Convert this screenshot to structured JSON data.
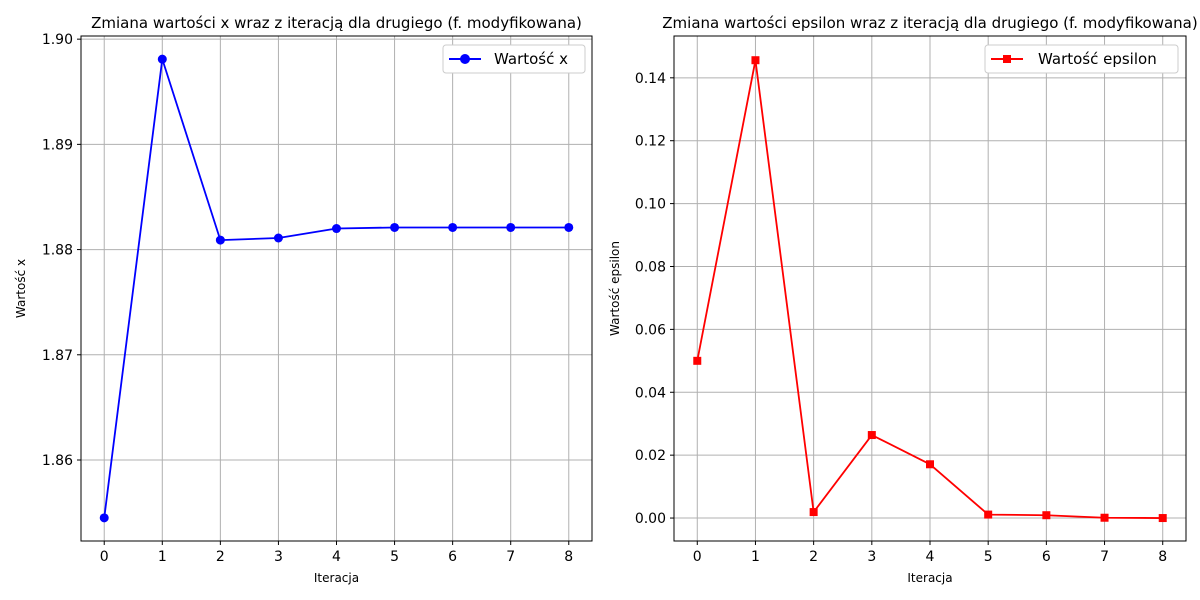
{
  "chart_data": [
    {
      "type": "line",
      "title": "Zmiana wartości x wraz z iteracją dla drugiego (f. modyfikowana)",
      "xlabel": "Iteracja",
      "ylabel": "Wartość x",
      "x": [
        0,
        1,
        2,
        3,
        4,
        5,
        6,
        7,
        8
      ],
      "xticks": [
        "0",
        "1",
        "2",
        "3",
        "4",
        "5",
        "6",
        "7",
        "8"
      ],
      "xlim": [
        -0.4,
        8.4
      ],
      "ylim": [
        1.8523,
        1.9003
      ],
      "yticks": [
        1.86,
        1.87,
        1.88,
        1.89,
        1.9
      ],
      "ytick_labels": [
        "1.86",
        "1.87",
        "1.88",
        "1.89",
        "1.90"
      ],
      "grid": true,
      "legend_position": "top-right",
      "series": [
        {
          "name": "Wartość x",
          "color": "#0000ff",
          "marker": "circle",
          "values": [
            1.8545,
            1.8981,
            1.8809,
            1.8811,
            1.882,
            1.8821,
            1.8821,
            1.8821,
            1.8821
          ]
        }
      ]
    },
    {
      "type": "line",
      "title": "Zmiana wartości epsilon wraz z iteracją dla drugiego (f. modyfikowana)",
      "xlabel": "Iteracja",
      "ylabel": "Wartość epsilon",
      "x": [
        0,
        1,
        2,
        3,
        4,
        5,
        6,
        7,
        8
      ],
      "xticks": [
        "0",
        "1",
        "2",
        "3",
        "4",
        "5",
        "6",
        "7",
        "8"
      ],
      "xlim": [
        -0.4,
        8.4
      ],
      "ylim": [
        -0.0073,
        0.1533
      ],
      "yticks": [
        0.0,
        0.02,
        0.04,
        0.06,
        0.08,
        0.1,
        0.12,
        0.14
      ],
      "ytick_labels": [
        "0.00",
        "0.02",
        "0.04",
        "0.06",
        "0.08",
        "0.10",
        "0.12",
        "0.14"
      ],
      "grid": true,
      "legend_position": "top-right",
      "series": [
        {
          "name": "Wartość epsilon",
          "color": "#ff0000",
          "marker": "square",
          "values": [
            0.05,
            0.1456,
            0.0019,
            0.0264,
            0.0171,
            0.0011,
            0.0009,
            0.0001,
            0.0
          ]
        }
      ]
    }
  ]
}
